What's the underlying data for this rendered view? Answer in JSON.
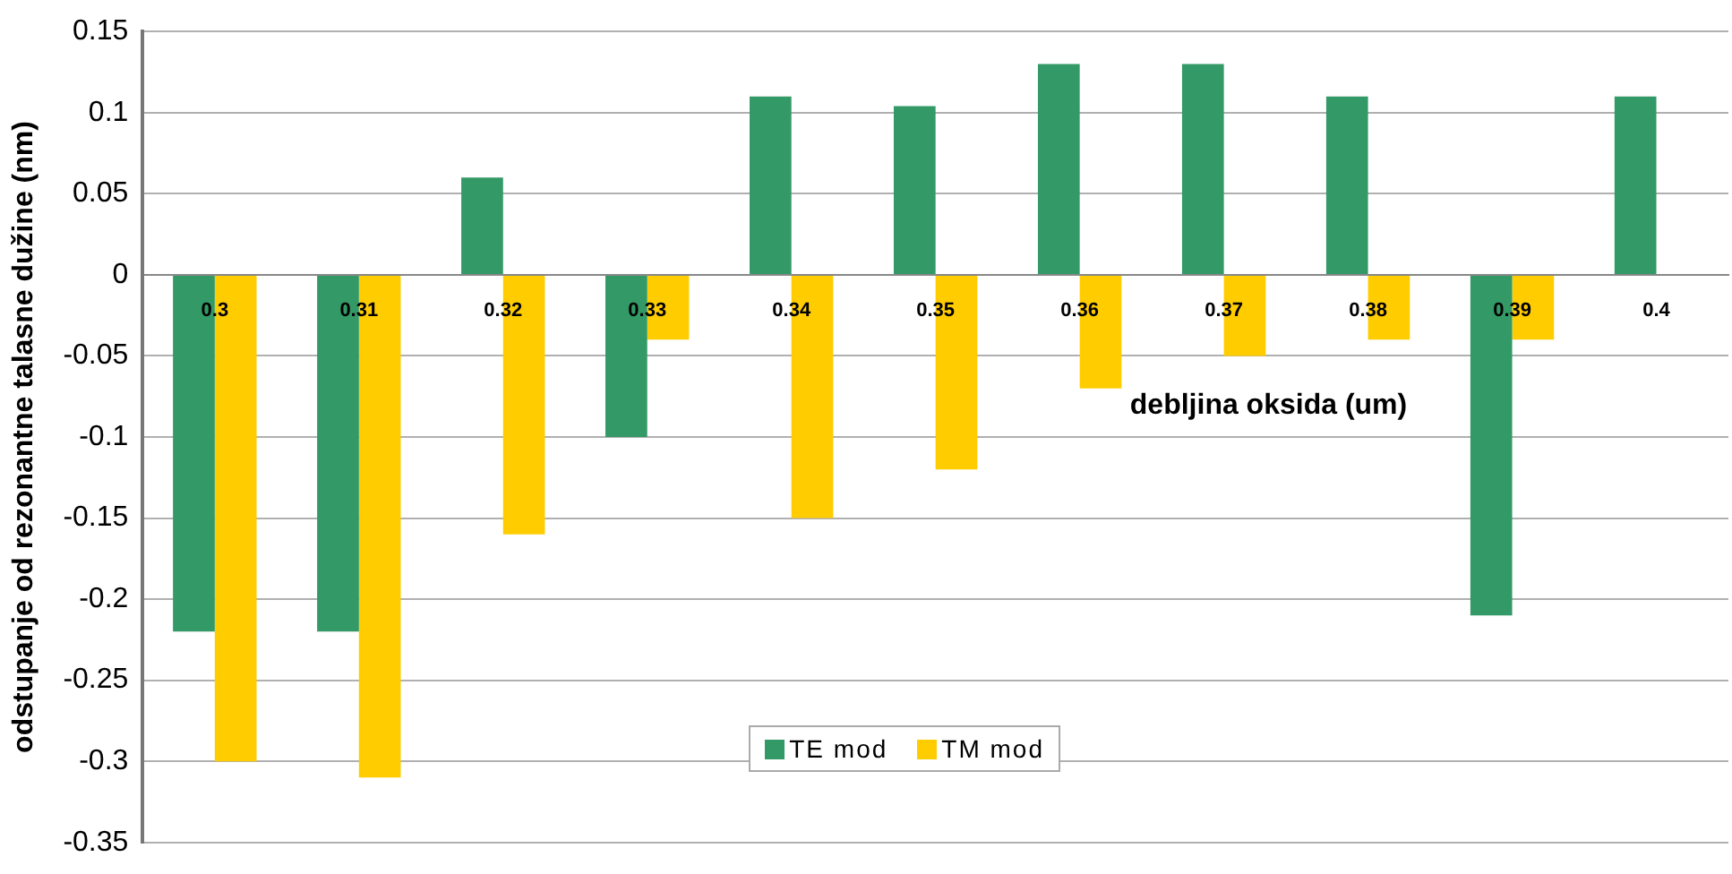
{
  "chart_data": {
    "type": "bar",
    "xlabel": "debljina oksida (um)",
    "ylabel": "odstupanje od rezonantne talasne dužine (nm)",
    "categories": [
      "0.3",
      "0.31",
      "0.32",
      "0.33",
      "0.34",
      "0.35",
      "0.36",
      "0.37",
      "0.38",
      "0.39",
      "0.4"
    ],
    "series": [
      {
        "name": "TE mod",
        "color": "#339966",
        "values": [
          -0.22,
          -0.22,
          0.06,
          -0.1,
          0.11,
          0.104,
          0.13,
          0.13,
          0.11,
          -0.21,
          0.11
        ]
      },
      {
        "name": "TM mod",
        "color": "#ffcc00",
        "values": [
          -0.3,
          -0.31,
          -0.16,
          -0.04,
          -0.15,
          -0.12,
          -0.07,
          -0.05,
          -0.04,
          -0.04,
          null
        ]
      }
    ],
    "ylim": [
      -0.35,
      0.15
    ],
    "yticks": [
      -0.35,
      -0.3,
      -0.25,
      -0.2,
      -0.15,
      -0.1,
      -0.05,
      0,
      0.05,
      0.1,
      0.15
    ],
    "grid": "y",
    "legend": "bottom"
  }
}
